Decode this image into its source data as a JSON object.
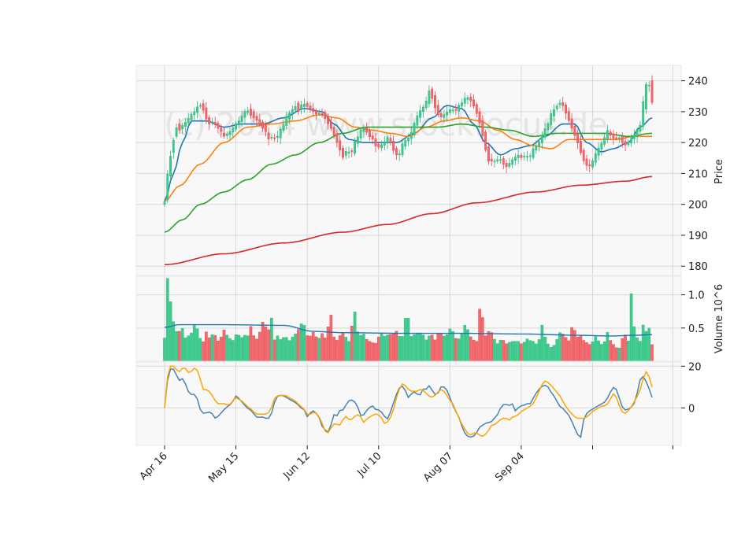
{
  "chart_data": {
    "type": "candlestick",
    "watermark": "(c) 2024 www.stockfocus.de",
    "x_tick_labels": [
      "Apr 16",
      "May 15",
      "Jun 12",
      "Jul 10",
      "Aug 07",
      "Sep 04"
    ],
    "price_panel": {
      "ylabel": "Price",
      "ylim": [
        177,
        245
      ],
      "y_ticks": [
        180,
        190,
        200,
        210,
        220,
        230,
        240
      ],
      "ma_series": [
        {
          "color": "#1f77b4",
          "knots": [
            [
              0,
              201
            ],
            [
              3,
              210
            ],
            [
              6,
              220
            ],
            [
              9,
              227
            ],
            [
              14,
              227
            ],
            [
              20,
              225
            ],
            [
              26,
              226
            ],
            [
              33,
              226
            ],
            [
              40,
              228
            ],
            [
              47,
              231
            ],
            [
              53,
              230
            ],
            [
              57,
              226
            ],
            [
              62,
              221
            ],
            [
              67,
              220
            ],
            [
              72,
              220
            ],
            [
              78,
              220
            ],
            [
              84,
              223
            ],
            [
              90,
              228
            ],
            [
              95,
              232
            ],
            [
              100,
              231
            ],
            [
              104,
              226
            ],
            [
              108,
              220
            ],
            [
              113,
              216
            ],
            [
              118,
              218
            ],
            [
              123,
              219
            ],
            [
              128,
              222
            ],
            [
              134,
              226
            ],
            [
              138,
              226
            ],
            [
              142,
              220
            ],
            [
              147,
              217
            ],
            [
              151,
              218
            ],
            [
              156,
              220
            ],
            [
              160,
              225
            ],
            [
              164,
              228
            ]
          ]
        },
        {
          "color": "#ff7f0e",
          "knots": [
            [
              0,
              201
            ],
            [
              5,
              206
            ],
            [
              12,
              213
            ],
            [
              20,
              220
            ],
            [
              28,
              225
            ],
            [
              36,
              226
            ],
            [
              44,
              227
            ],
            [
              52,
              229
            ],
            [
              58,
              228
            ],
            [
              64,
              225
            ],
            [
              70,
              224
            ],
            [
              76,
              223
            ],
            [
              82,
              222
            ],
            [
              88,
              225
            ],
            [
              94,
              227
            ],
            [
              100,
              228
            ],
            [
              106,
              227
            ],
            [
              112,
              224
            ],
            [
              118,
              221
            ],
            [
              124,
              219
            ],
            [
              130,
              218
            ],
            [
              136,
              221
            ],
            [
              144,
              221
            ],
            [
              152,
              221
            ],
            [
              158,
              222
            ],
            [
              164,
              222
            ]
          ]
        },
        {
          "color": "#2ca02c",
          "knots": [
            [
              0,
              191
            ],
            [
              6,
              195
            ],
            [
              12,
              200
            ],
            [
              20,
              204
            ],
            [
              28,
              208
            ],
            [
              36,
              213
            ],
            [
              44,
              216
            ],
            [
              52,
              220
            ],
            [
              60,
              223
            ],
            [
              68,
              225
            ],
            [
              76,
              225
            ],
            [
              84,
              225
            ],
            [
              92,
              225
            ],
            [
              100,
              226
            ],
            [
              108,
              225
            ],
            [
              116,
              224
            ],
            [
              124,
              222
            ],
            [
              132,
              223
            ],
            [
              140,
              223
            ],
            [
              148,
              223
            ],
            [
              156,
              222
            ],
            [
              164,
              223
            ]
          ]
        },
        {
          "color": "#d62728",
          "knots": [
            [
              0,
              180.5
            ],
            [
              20,
              184
            ],
            [
              40,
              187.5
            ],
            [
              60,
              191
            ],
            [
              75,
              193.5
            ],
            [
              90,
              197
            ],
            [
              105,
              200.5
            ],
            [
              125,
              204
            ],
            [
              140,
              206.2
            ],
            [
              155,
              207.5
            ],
            [
              164,
              209
            ]
          ]
        }
      ],
      "candle_closes": [
        201,
        212,
        218,
        225,
        224,
        226,
        227,
        229,
        230,
        232,
        232,
        228,
        226,
        227,
        225,
        224,
        222,
        223,
        224,
        226,
        227,
        229,
        231,
        229,
        228,
        227,
        225,
        224,
        221,
        222,
        221,
        224,
        226,
        229,
        230,
        232,
        230,
        233,
        232,
        231,
        230,
        229,
        230,
        228,
        226,
        224,
        221,
        218,
        215,
        218,
        216,
        220,
        222,
        225,
        224,
        222,
        221,
        218,
        219,
        220,
        222,
        219,
        216,
        216,
        220,
        221,
        222,
        226,
        229,
        231,
        232,
        237,
        234,
        230,
        228,
        229,
        230,
        231,
        230,
        232,
        233,
        235,
        234,
        232,
        229,
        225,
        219,
        214,
        214,
        214,
        215,
        213,
        212,
        214,
        215,
        216,
        215,
        216,
        215,
        218,
        219,
        221,
        224,
        226,
        230,
        231,
        233,
        232,
        229,
        226,
        223,
        220,
        216,
        213,
        212,
        214,
        217,
        219,
        221,
        224,
        222,
        221,
        222,
        220,
        219,
        221,
        222,
        224,
        226,
        238,
        240,
        233
      ],
      "candle_opens": [
        200,
        202,
        214,
        221,
        226,
        224,
        226,
        227,
        229,
        230,
        233,
        232,
        228,
        226,
        227,
        225,
        223,
        222,
        223,
        224,
        226,
        227,
        229,
        231,
        230,
        228,
        227,
        226,
        223,
        221,
        222,
        221,
        224,
        226,
        229,
        230,
        233,
        230,
        233,
        232,
        231,
        230,
        229,
        230,
        228,
        226,
        224,
        221,
        218,
        215,
        218,
        216,
        220,
        222,
        225,
        224,
        222,
        221,
        218,
        219,
        220,
        222,
        219,
        216,
        216,
        220,
        221,
        222,
        226,
        229,
        231,
        232,
        238,
        234,
        230,
        228,
        229,
        230,
        231,
        230,
        232,
        233,
        235,
        234,
        232,
        229,
        225,
        219,
        214,
        214,
        214,
        215,
        213,
        212,
        214,
        215,
        216,
        215,
        216,
        215,
        218,
        219,
        221,
        224,
        226,
        230,
        232,
        233,
        232,
        229,
        226,
        223,
        220,
        216,
        213,
        212,
        214,
        217,
        219,
        221,
        224,
        222,
        221,
        222,
        220,
        219,
        221,
        222,
        224,
        226,
        238,
        240
      ]
    },
    "volume_panel": {
      "ylabel": "Volume  10^6",
      "ylim": [
        0,
        1.28
      ],
      "y_ticks": [
        0.5,
        1.0
      ],
      "volumes": [
        0.35,
        1.25,
        0.9,
        0.6,
        0.45,
        0.45,
        0.5,
        0.35,
        0.38,
        0.42,
        0.55,
        0.5,
        0.35,
        0.28,
        0.45,
        0.35,
        0.4,
        0.4,
        0.3,
        0.35,
        0.48,
        0.4,
        0.35,
        0.3,
        0.4,
        0.4,
        0.35,
        0.4,
        0.35,
        0.55,
        0.4,
        0.32,
        0.4,
        0.6,
        0.55,
        0.4,
        0.75,
        0.3,
        0.4,
        0.32,
        0.35,
        0.38,
        0.3,
        0.35,
        0.4,
        0.45,
        0.55,
        0.6,
        0.4,
        0.35,
        0.45,
        0.4,
        0.3,
        0.45,
        0.35,
        0.35,
        0.85,
        0.4,
        0.3,
        0.35,
        0.45,
        0.4,
        0.3,
        0.3,
        0.9,
        0.5,
        0.35,
        0.45,
        0.35,
        0.3,
        0.3,
        0.25,
        0.3,
        0.45,
        0.4,
        0.35,
        0.45,
        0.35,
        0.5,
        0.4,
        0.35,
        0.4,
        0.9,
        0.4,
        0.35,
        0.45,
        0.4,
        0.45,
        0.35,
        0.3,
        0.45,
        0.35,
        0.3,
        0.5,
        0.35,
        0.4,
        0.4,
        0.55,
        0.38,
        0.32,
        0.35,
        0.45,
        0.6,
        0.4,
        0.35,
        0.3,
        0.3,
        1.05,
        0.45,
        0.35,
        0.5,
        0.4,
        0.3,
        0.25,
        0.35,
        0.3,
        0.25,
        0.3,
        0.3,
        0.3,
        0.3,
        0.25,
        0.3,
        0.35,
        0.3,
        0.3,
        0.25,
        0.35,
        0.6,
        0.3,
        0.25,
        0.2,
        0.25,
        0.35,
        0.45,
        0.4,
        0.35,
        0.3,
        0.55,
        0.45,
        0.35,
        0.4,
        0.3,
        0.28,
        0.25,
        0.3,
        0.38,
        0.3,
        0.25,
        0.3,
        0.45,
        0.3,
        0.25,
        0.2,
        0.2,
        0.35,
        0.4,
        0.3,
        1.05,
        0.5,
        0.35,
        0.3,
        0.55,
        0.45,
        0.5,
        0.25
      ],
      "avg_color": "#1f77b4",
      "avg_knots": [
        [
          0,
          0.51
        ],
        [
          5,
          0.55
        ],
        [
          20,
          0.55
        ],
        [
          40,
          0.54
        ],
        [
          50,
          0.45
        ],
        [
          60,
          0.43
        ],
        [
          80,
          0.42
        ],
        [
          100,
          0.42
        ],
        [
          120,
          0.41
        ],
        [
          140,
          0.39
        ],
        [
          150,
          0.38
        ],
        [
          158,
          0.39
        ],
        [
          164,
          0.4
        ]
      ]
    },
    "indicator_panel": {
      "ylim": [
        -18,
        22
      ],
      "y_ticks": [
        0,
        20
      ],
      "series": [
        {
          "color": "#4682b4",
          "values": [
            0,
            16,
            20,
            17,
            13,
            14,
            11,
            6,
            7,
            5,
            -1,
            -3,
            -2,
            -2,
            -5,
            -4,
            -2,
            0,
            1,
            3,
            6,
            4,
            2,
            0,
            -1,
            -3,
            -5,
            -4,
            -5,
            -5,
            -2,
            5,
            6,
            6,
            5,
            4,
            3,
            2,
            0,
            -1,
            -5,
            -1,
            -2,
            -4,
            -9,
            -11,
            -12,
            -3,
            -4,
            -1,
            -1,
            3,
            4,
            3,
            0,
            -5,
            -2,
            0,
            1,
            -1,
            -1,
            -3,
            -6,
            -2,
            3,
            8,
            11,
            9,
            5,
            7,
            8,
            5,
            9,
            9,
            11,
            7,
            6,
            10,
            10,
            8,
            3,
            -1,
            -4,
            -9,
            -13,
            -14,
            -14,
            -12,
            -9,
            -8,
            -7,
            -7,
            -5,
            -3,
            1,
            2,
            1,
            2,
            -2,
            1,
            1,
            2,
            2,
            5,
            8,
            10,
            11,
            10,
            7,
            5,
            1,
            0,
            -2,
            -4,
            -8,
            -12,
            -15,
            -5,
            -2,
            -1,
            0,
            1,
            2,
            3,
            6,
            10,
            9,
            4,
            -1,
            -1,
            0,
            2,
            8,
            16,
            14,
            10,
            5
          ]
        },
        {
          "color": "#ffa500",
          "values": [
            0,
            18,
            21,
            19,
            17,
            19,
            19,
            16,
            19,
            19,
            14,
            8,
            9,
            7,
            4,
            2,
            2,
            2,
            1,
            3,
            5,
            4,
            3,
            1,
            0,
            -2,
            -3,
            -3,
            -3,
            -3,
            0,
            5,
            6,
            6,
            6,
            5,
            4,
            3,
            1,
            0,
            -3,
            -3,
            -2,
            -3,
            -6,
            -11,
            -12,
            -9,
            -7,
            -9,
            -6,
            -4,
            -6,
            -5,
            -3,
            -4,
            -7,
            -5,
            -4,
            -3,
            -3,
            -5,
            -8,
            -6,
            -3,
            4,
            9,
            12,
            10,
            8,
            8,
            8,
            9,
            8,
            6,
            5,
            6,
            8,
            9,
            7,
            4,
            2,
            -2,
            -6,
            -9,
            -12,
            -13,
            -12,
            -12,
            -14,
            -13,
            -11,
            -8,
            -8,
            -6,
            -5,
            -5,
            -6,
            -4,
            -4,
            -2,
            -1,
            0,
            1,
            3,
            7,
            11,
            13,
            12,
            10,
            8,
            6,
            3,
            0,
            -2,
            -4,
            -5,
            -5,
            -5,
            -4,
            -2,
            -1,
            0,
            1,
            1,
            3,
            7,
            5,
            0,
            -3,
            -2,
            0,
            3,
            6,
            10,
            18,
            16,
            10
          ]
        }
      ]
    }
  }
}
